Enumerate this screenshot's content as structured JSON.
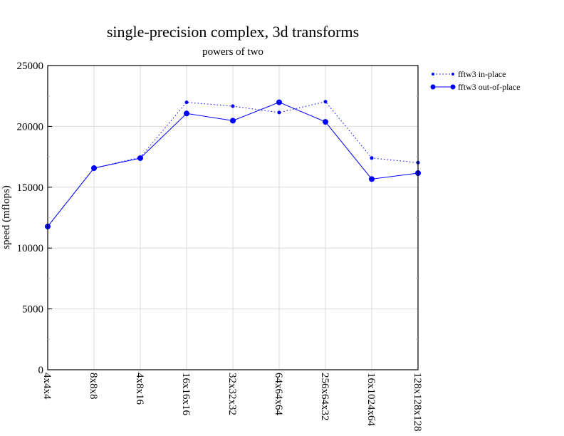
{
  "chart_data": {
    "type": "line",
    "title": "single-precision complex, 3d transforms",
    "subtitle": "powers of two",
    "xlabel": "",
    "ylabel": "speed (mflops)",
    "ylim": [
      0,
      25000
    ],
    "yticks": [
      0,
      5000,
      10000,
      15000,
      20000,
      25000
    ],
    "grid": true,
    "legend_position": "right-top",
    "categories": [
      "4x4x4",
      "8x8x8",
      "4x8x16",
      "16x16x16",
      "32x32x32",
      "64x64x64",
      "256x64x32",
      "16x1024x64",
      "128x128x128"
    ],
    "series": [
      {
        "name": "fftw3 in-place",
        "style": "dotted",
        "color": "#0000ff",
        "values": [
          11770,
          16570,
          17450,
          21980,
          21660,
          21140,
          22030,
          17400,
          17020
        ]
      },
      {
        "name": "fftw3 out-of-place",
        "style": "solid",
        "color": "#0000ff",
        "values": [
          11770,
          16570,
          17390,
          21060,
          20470,
          21980,
          20370,
          15670,
          16160
        ]
      }
    ]
  }
}
